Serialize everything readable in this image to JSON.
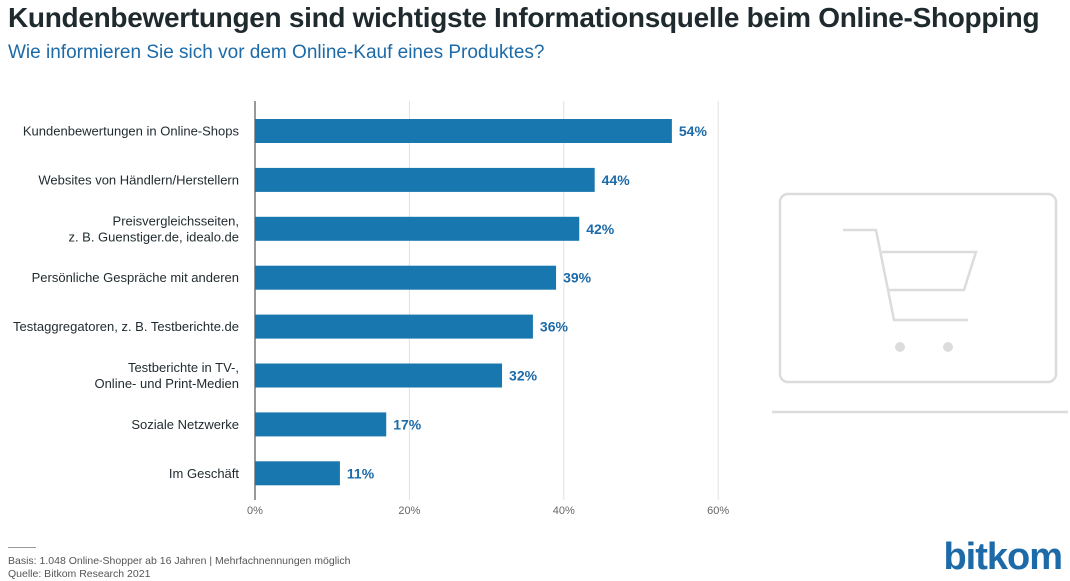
{
  "header": {
    "title": "Kundenbewertungen sind wichtigste Informationsquelle beim Online-Shopping",
    "subtitle": "Wie informieren Sie sich vor dem Online-Kauf eines Produktes?"
  },
  "chart_data": {
    "type": "bar",
    "orientation": "horizontal",
    "categories": [
      [
        "Kundenbewertungen in Online-Shops"
      ],
      [
        "Websites von Händlern/Herstellern"
      ],
      [
        "Preisvergleichsseiten,",
        "z. B. Guenstiger.de, idealo.de"
      ],
      [
        "Persönliche Gespräche mit anderen"
      ],
      [
        "Testaggregatoren, z. B. Testberichte.de"
      ],
      [
        "Testberichte in TV-,",
        "Online- und Print-Medien"
      ],
      [
        "Soziale Netzwerke"
      ],
      [
        "Im Geschäft"
      ]
    ],
    "values": [
      54,
      44,
      42,
      39,
      36,
      32,
      17,
      11
    ],
    "value_labels": [
      "54%",
      "44%",
      "42%",
      "39%",
      "36%",
      "32%",
      "17%",
      "11%"
    ],
    "xlim": [
      0,
      60
    ],
    "xticks": [
      0,
      20,
      40,
      60
    ],
    "xtick_labels": [
      "0%",
      "20%",
      "40%",
      "60%"
    ],
    "grid": true,
    "bar_color": "#1877ae",
    "label_color": "#1c6aa8"
  },
  "footer": {
    "basis": "Basis: 1.048 Online-Shopper ab 16 Jahren | Mehrfachnennungen möglich",
    "source": "Quelle: Bitkom Research 2021"
  },
  "logo": {
    "text": "bitkom"
  },
  "illustration": {
    "icon": "shopping-cart-monitor-icon",
    "color": "#dcdcdc"
  }
}
